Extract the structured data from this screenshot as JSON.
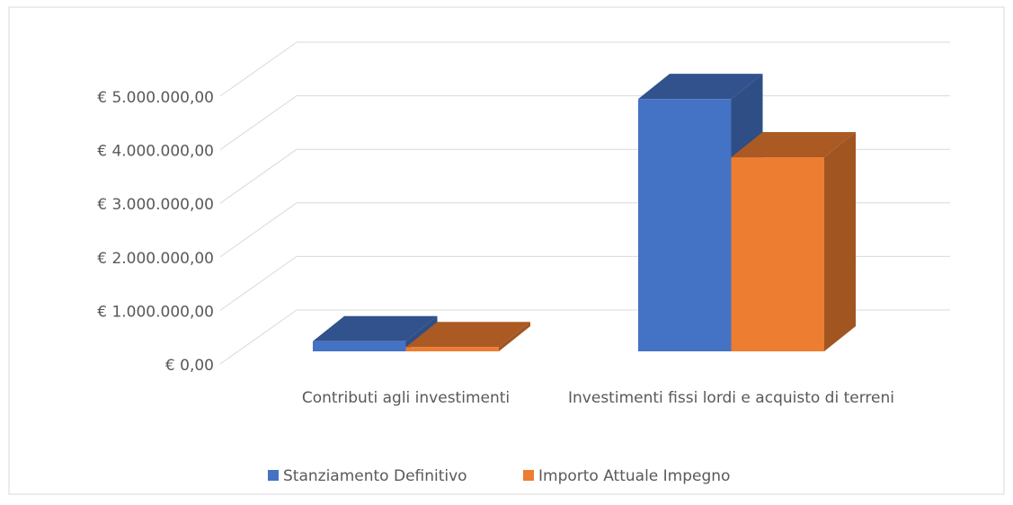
{
  "chart_data": {
    "type": "bar3d",
    "categories": [
      "Contributi agli investimenti",
      "Investimenti fissi lordi e acquisto di terreni"
    ],
    "series": [
      {
        "name": "Stanziamento Definitivo",
        "color": "#4472c4",
        "values": [
          190000,
          4760000
        ]
      },
      {
        "name": "Importo Attuale Impegno",
        "color": "#ed7d31",
        "values": [
          80000,
          3660000
        ]
      }
    ],
    "ylim": [
      0,
      5000000
    ],
    "yticks": [
      {
        "value": 0,
        "label": "€ 0,00"
      },
      {
        "value": 1000000,
        "label": "€ 1.000.000,00"
      },
      {
        "value": 2000000,
        "label": "€ 2.000.000,00"
      },
      {
        "value": 3000000,
        "label": "€ 3.000.000,00"
      },
      {
        "value": 4000000,
        "label": "€ 4.000.000,00"
      },
      {
        "value": 5000000,
        "label": "€ 5.000.000,00"
      }
    ],
    "grid": true,
    "legend": "bottom"
  }
}
